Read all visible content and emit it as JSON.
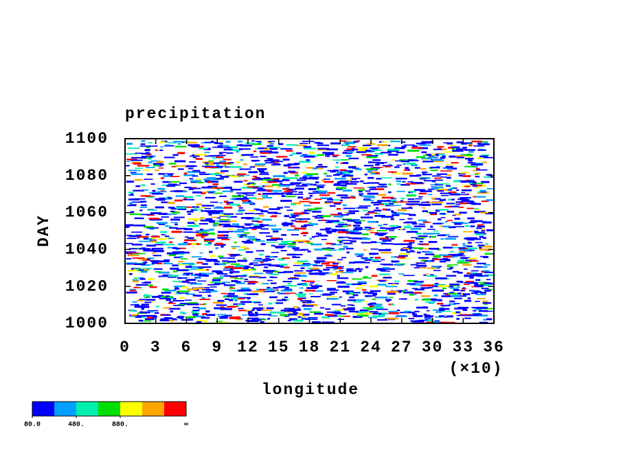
{
  "chart_data": {
    "type": "contour",
    "title": "precipitation",
    "x_label": "longitude",
    "y_label": "DAY",
    "x_scale_label": "(×10)",
    "xlim": [
      0,
      36
    ],
    "xticks": [
      0,
      3,
      6,
      9,
      12,
      15,
      18,
      21,
      24,
      27,
      30,
      33,
      36
    ],
    "ylim": [
      1000,
      1100
    ],
    "yticks": [
      1000,
      1020,
      1040,
      1060,
      1080,
      1100
    ],
    "colorbar": {
      "colors": [
        "#0000ff",
        "#00a0ff",
        "#00f0b0",
        "#00dd00",
        "#ffff00",
        "#ffa500",
        "#ff0000"
      ],
      "clim": [
        80,
        1480
      ],
      "ticks": [
        {
          "value": 80,
          "label": "80.0"
        },
        {
          "value": 480,
          "label": "480."
        },
        {
          "value": 880,
          "label": "880."
        }
      ],
      "open_end_label": "∞"
    }
  }
}
